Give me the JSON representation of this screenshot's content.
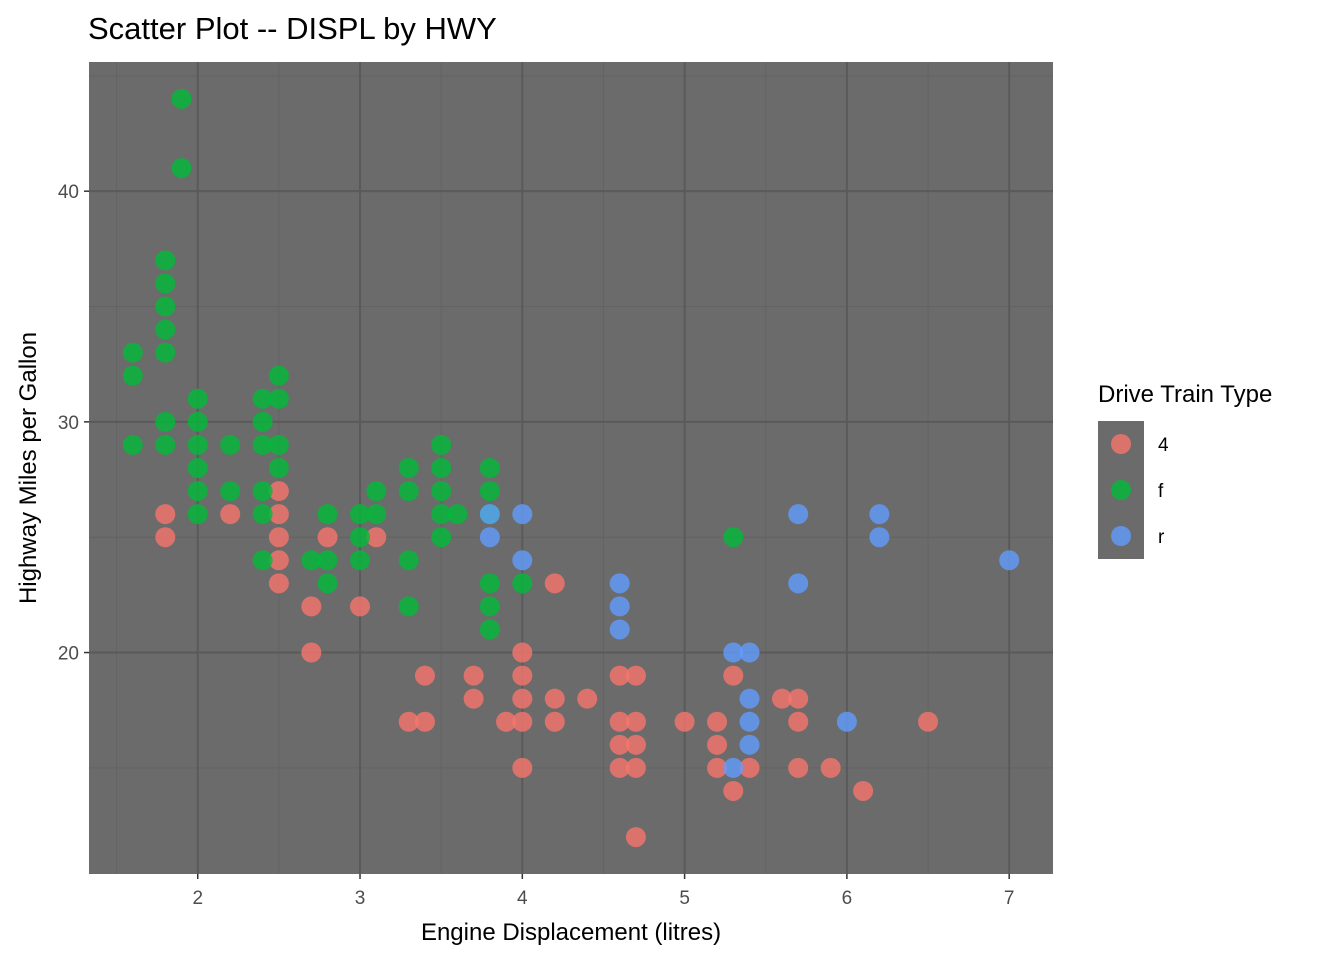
{
  "chart_data": {
    "type": "scatter",
    "title": "Scatter Plot -- DISPL by HWY",
    "xlabel": "Engine Displacement (litres)",
    "ylabel": "Highway Miles per Gallon",
    "xlim": [
      1.33,
      7.27
    ],
    "ylim": [
      10.4,
      45.6
    ],
    "xticks": [
      2,
      3,
      4,
      5,
      6,
      7
    ],
    "yticks": [
      20,
      30,
      40
    ],
    "grid": true,
    "legend": {
      "title": "Drive Train Type",
      "position": "right"
    },
    "colors": {
      "panel": "#6b6b6b",
      "grid_major": "#5a5a5a",
      "grid_minor": "#636363"
    },
    "series": [
      {
        "name": "4",
        "color": "#F8766D",
        "points": [
          [
            1.8,
            26
          ],
          [
            1.8,
            25
          ],
          [
            2.2,
            26
          ],
          [
            2.5,
            27
          ],
          [
            2.5,
            26
          ],
          [
            2.5,
            25
          ],
          [
            2.5,
            24
          ],
          [
            2.5,
            23
          ],
          [
            2.7,
            22
          ],
          [
            2.7,
            20
          ],
          [
            2.8,
            25
          ],
          [
            3.0,
            22
          ],
          [
            3.1,
            25
          ],
          [
            3.3,
            17
          ],
          [
            3.4,
            19
          ],
          [
            3.4,
            17
          ],
          [
            3.7,
            19
          ],
          [
            3.7,
            18
          ],
          [
            3.9,
            17
          ],
          [
            4.0,
            20
          ],
          [
            4.0,
            19
          ],
          [
            4.0,
            18
          ],
          [
            4.0,
            17
          ],
          [
            4.0,
            15
          ],
          [
            4.2,
            23
          ],
          [
            4.2,
            18
          ],
          [
            4.2,
            17
          ],
          [
            4.4,
            18
          ],
          [
            4.6,
            19
          ],
          [
            4.6,
            17
          ],
          [
            4.6,
            16
          ],
          [
            4.6,
            15
          ],
          [
            4.7,
            19
          ],
          [
            4.7,
            17
          ],
          [
            4.7,
            16
          ],
          [
            4.7,
            15
          ],
          [
            4.7,
            12
          ],
          [
            5.0,
            17
          ],
          [
            5.2,
            17
          ],
          [
            5.2,
            16
          ],
          [
            5.2,
            15
          ],
          [
            5.3,
            19
          ],
          [
            5.3,
            14
          ],
          [
            5.4,
            15
          ],
          [
            5.6,
            18
          ],
          [
            5.7,
            18
          ],
          [
            5.7,
            17
          ],
          [
            5.7,
            15
          ],
          [
            5.9,
            15
          ],
          [
            6.1,
            14
          ],
          [
            6.5,
            17
          ]
        ]
      },
      {
        "name": "f",
        "color": "#00BA38",
        "points": [
          [
            1.9,
            44
          ],
          [
            1.9,
            41
          ],
          [
            1.8,
            37
          ],
          [
            1.8,
            36
          ],
          [
            1.8,
            35
          ],
          [
            1.8,
            34
          ],
          [
            1.8,
            33
          ],
          [
            1.6,
            33
          ],
          [
            1.6,
            32
          ],
          [
            1.8,
            30
          ],
          [
            1.8,
            29
          ],
          [
            1.6,
            29
          ],
          [
            2.0,
            31
          ],
          [
            2.0,
            30
          ],
          [
            2.0,
            29
          ],
          [
            2.0,
            28
          ],
          [
            2.0,
            27
          ],
          [
            2.0,
            26
          ],
          [
            2.2,
            29
          ],
          [
            2.2,
            27
          ],
          [
            2.4,
            31
          ],
          [
            2.4,
            30
          ],
          [
            2.4,
            29
          ],
          [
            2.4,
            27
          ],
          [
            2.4,
            26
          ],
          [
            2.4,
            24
          ],
          [
            2.5,
            32
          ],
          [
            2.5,
            31
          ],
          [
            2.5,
            29
          ],
          [
            2.5,
            28
          ],
          [
            2.7,
            24
          ],
          [
            2.8,
            26
          ],
          [
            2.8,
            24
          ],
          [
            2.8,
            23
          ],
          [
            3.0,
            26
          ],
          [
            3.0,
            25
          ],
          [
            3.0,
            24
          ],
          [
            3.1,
            27
          ],
          [
            3.1,
            26
          ],
          [
            3.3,
            28
          ],
          [
            3.3,
            27
          ],
          [
            3.3,
            24
          ],
          [
            3.3,
            22
          ],
          [
            3.5,
            29
          ],
          [
            3.5,
            28
          ],
          [
            3.5,
            27
          ],
          [
            3.5,
            26
          ],
          [
            3.5,
            25
          ],
          [
            3.6,
            26
          ],
          [
            3.8,
            28
          ],
          [
            3.8,
            27
          ],
          [
            3.8,
            26
          ],
          [
            3.8,
            23
          ],
          [
            3.8,
            22
          ],
          [
            3.8,
            21
          ],
          [
            4.0,
            23
          ],
          [
            5.3,
            25
          ]
        ]
      },
      {
        "name": "r",
        "color": "#619CFF",
        "points": [
          [
            3.8,
            26
          ],
          [
            3.8,
            25
          ],
          [
            4.0,
            26
          ],
          [
            4.0,
            24
          ],
          [
            4.6,
            23
          ],
          [
            4.6,
            22
          ],
          [
            4.6,
            21
          ],
          [
            5.3,
            20
          ],
          [
            5.3,
            15
          ],
          [
            5.4,
            20
          ],
          [
            5.4,
            18
          ],
          [
            5.4,
            17
          ],
          [
            5.4,
            16
          ],
          [
            5.7,
            26
          ],
          [
            5.7,
            23
          ],
          [
            6.0,
            17
          ],
          [
            6.2,
            26
          ],
          [
            6.2,
            25
          ],
          [
            7.0,
            24
          ]
        ]
      }
    ]
  }
}
